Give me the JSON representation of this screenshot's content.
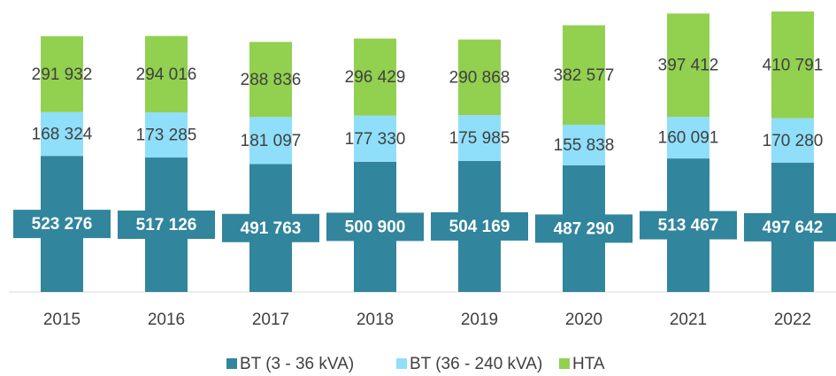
{
  "chart_data": {
    "type": "stacked_bar",
    "categories": [
      "2015",
      "2016",
      "2017",
      "2018",
      "2019",
      "2020",
      "2021",
      "2022"
    ],
    "series": [
      {
        "name": "BT (3 - 36 kVA)",
        "color": "#31859c",
        "values": [
          523276,
          517126,
          491763,
          500900,
          504169,
          487290,
          513467,
          497642
        ],
        "value_labels": [
          "523 276",
          "517 126",
          "491 763",
          "500 900",
          "504 169",
          "487 290",
          "513 467",
          "497 642"
        ]
      },
      {
        "name": "BT (36 - 240 kVA)",
        "color": "#8fdffa",
        "values": [
          168324,
          173285,
          181097,
          177330,
          175985,
          155838,
          160091,
          170280
        ],
        "value_labels": [
          "168 324",
          "173 285",
          "181 097",
          "177 330",
          "175 985",
          "155 838",
          "160 091",
          "170 280"
        ]
      },
      {
        "name": "HTA",
        "color": "#92d050",
        "values": [
          291932,
          294016,
          288836,
          296429,
          290868,
          382577,
          397412,
          410791
        ],
        "value_labels": [
          "291 932",
          "294 016",
          "288 836",
          "296 429",
          "290 868",
          "382 577",
          "397 412",
          "410 791"
        ]
      }
    ],
    "legend": "bottom"
  }
}
